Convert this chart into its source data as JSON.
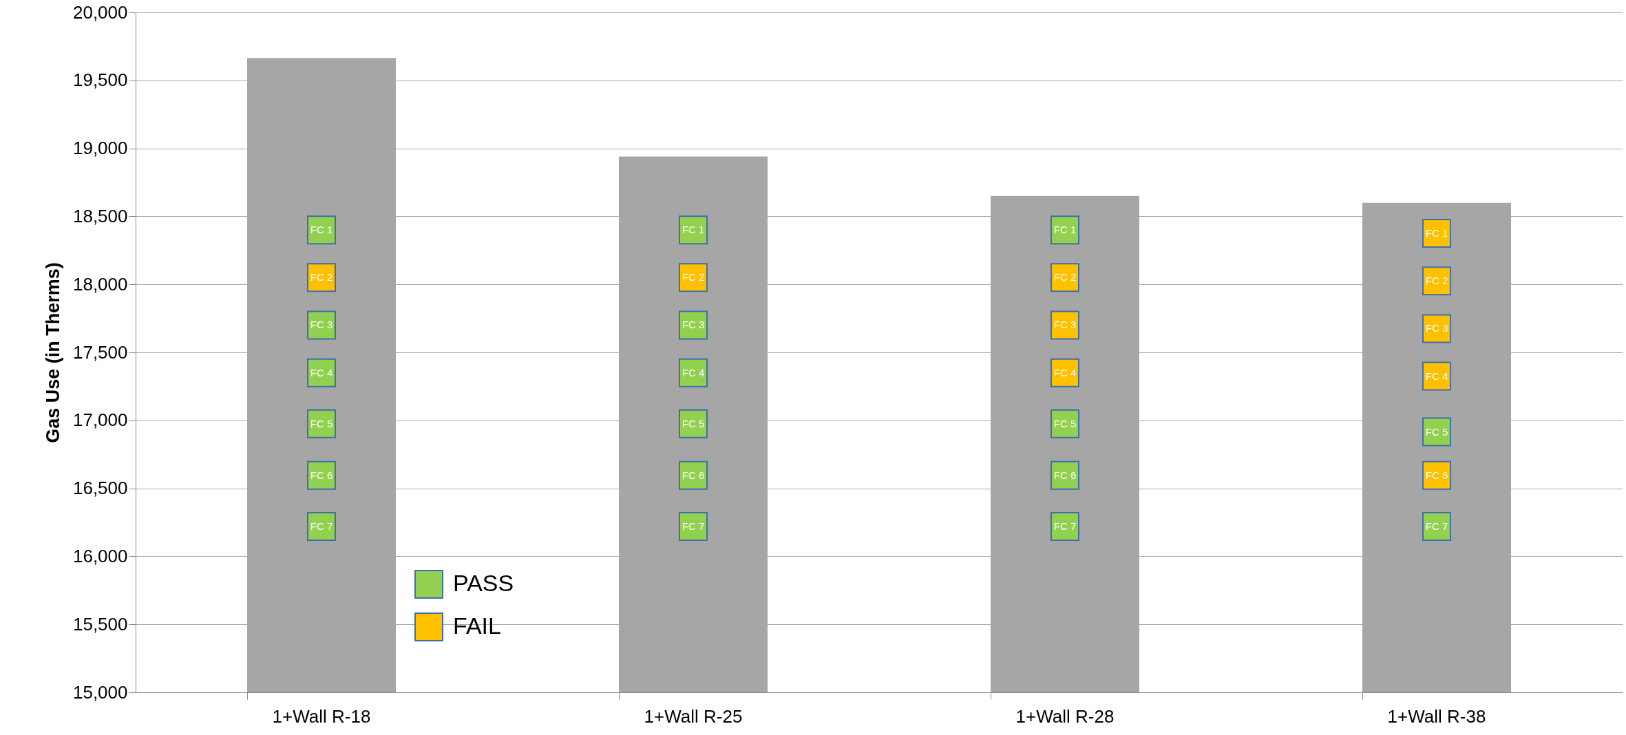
{
  "chart_data": {
    "type": "bar",
    "ylabel": "Gas Use (in Therms)",
    "categories": [
      "1+Wall R-18",
      "1+Wall R-25",
      "1+Wall R-28",
      "1+Wall R-38"
    ],
    "series": [
      {
        "type": "bar",
        "color": "#a6a6a6",
        "values": [
          19665,
          18940,
          18650,
          18600
        ]
      },
      {
        "type": "scatter",
        "name": "PASS",
        "color": "#92d050",
        "marker": "square",
        "x": [
          "1+Wall R-18",
          "1+Wall R-18",
          "1+Wall R-18",
          "1+Wall R-18",
          "1+Wall R-18",
          "1+Wall R-18",
          "1+Wall R-25",
          "1+Wall R-25",
          "1+Wall R-25",
          "1+Wall R-25",
          "1+Wall R-25",
          "1+Wall R-25",
          "1+Wall R-28",
          "1+Wall R-28",
          "1+Wall R-28",
          "1+Wall R-28",
          "1+Wall R-38",
          "1+Wall R-38"
        ],
        "values": [
          18400,
          17700,
          17350,
          16975,
          16595,
          16220,
          18400,
          17700,
          17350,
          16975,
          16595,
          16220,
          18400,
          16975,
          16595,
          16220,
          16915,
          16220
        ],
        "value_labels": [
          "FC 1",
          "FC 3",
          "FC 4",
          "FC 5",
          "FC 6",
          "FC 7",
          "FC 1",
          "FC 3",
          "FC 4",
          "FC 5",
          "FC 6",
          "FC 7",
          "FC 1",
          "FC 5",
          "FC 6",
          "FC 7",
          "FC 5",
          "FC 7"
        ]
      },
      {
        "type": "scatter",
        "name": "FAIL",
        "color": "#ffc000",
        "marker": "square",
        "x": [
          "1+Wall R-18",
          "1+Wall R-25",
          "1+Wall R-28",
          "1+Wall R-28",
          "1+Wall R-28",
          "1+Wall R-38",
          "1+Wall R-38",
          "1+Wall R-38",
          "1+Wall R-38",
          "1+Wall R-38"
        ],
        "values": [
          18050,
          18050,
          18050,
          17700,
          17350,
          18375,
          18025,
          17675,
          17325,
          16595
        ],
        "value_labels": [
          "FC 2",
          "FC 2",
          "FC 2",
          "FC 3",
          "FC 4",
          "FC 1",
          "FC 2",
          "FC 3",
          "FC 4",
          "FC 6"
        ]
      }
    ],
    "ylim": [
      15000,
      20000
    ],
    "yticks": [
      {
        "value": 15000,
        "label": "15,000"
      },
      {
        "value": 15500,
        "label": "15,500"
      },
      {
        "value": 16000,
        "label": "16,000"
      },
      {
        "value": 16500,
        "label": "16,500"
      },
      {
        "value": 17000,
        "label": "17,000"
      },
      {
        "value": 17500,
        "label": "17,500"
      },
      {
        "value": 18000,
        "label": "18,000"
      },
      {
        "value": 18500,
        "label": "18,500"
      },
      {
        "value": 19000,
        "label": "19,000"
      },
      {
        "value": 19500,
        "label": "19,500"
      },
      {
        "value": 20000,
        "label": "20,000"
      }
    ],
    "grid": "y",
    "legend": "bottom left"
  }
}
